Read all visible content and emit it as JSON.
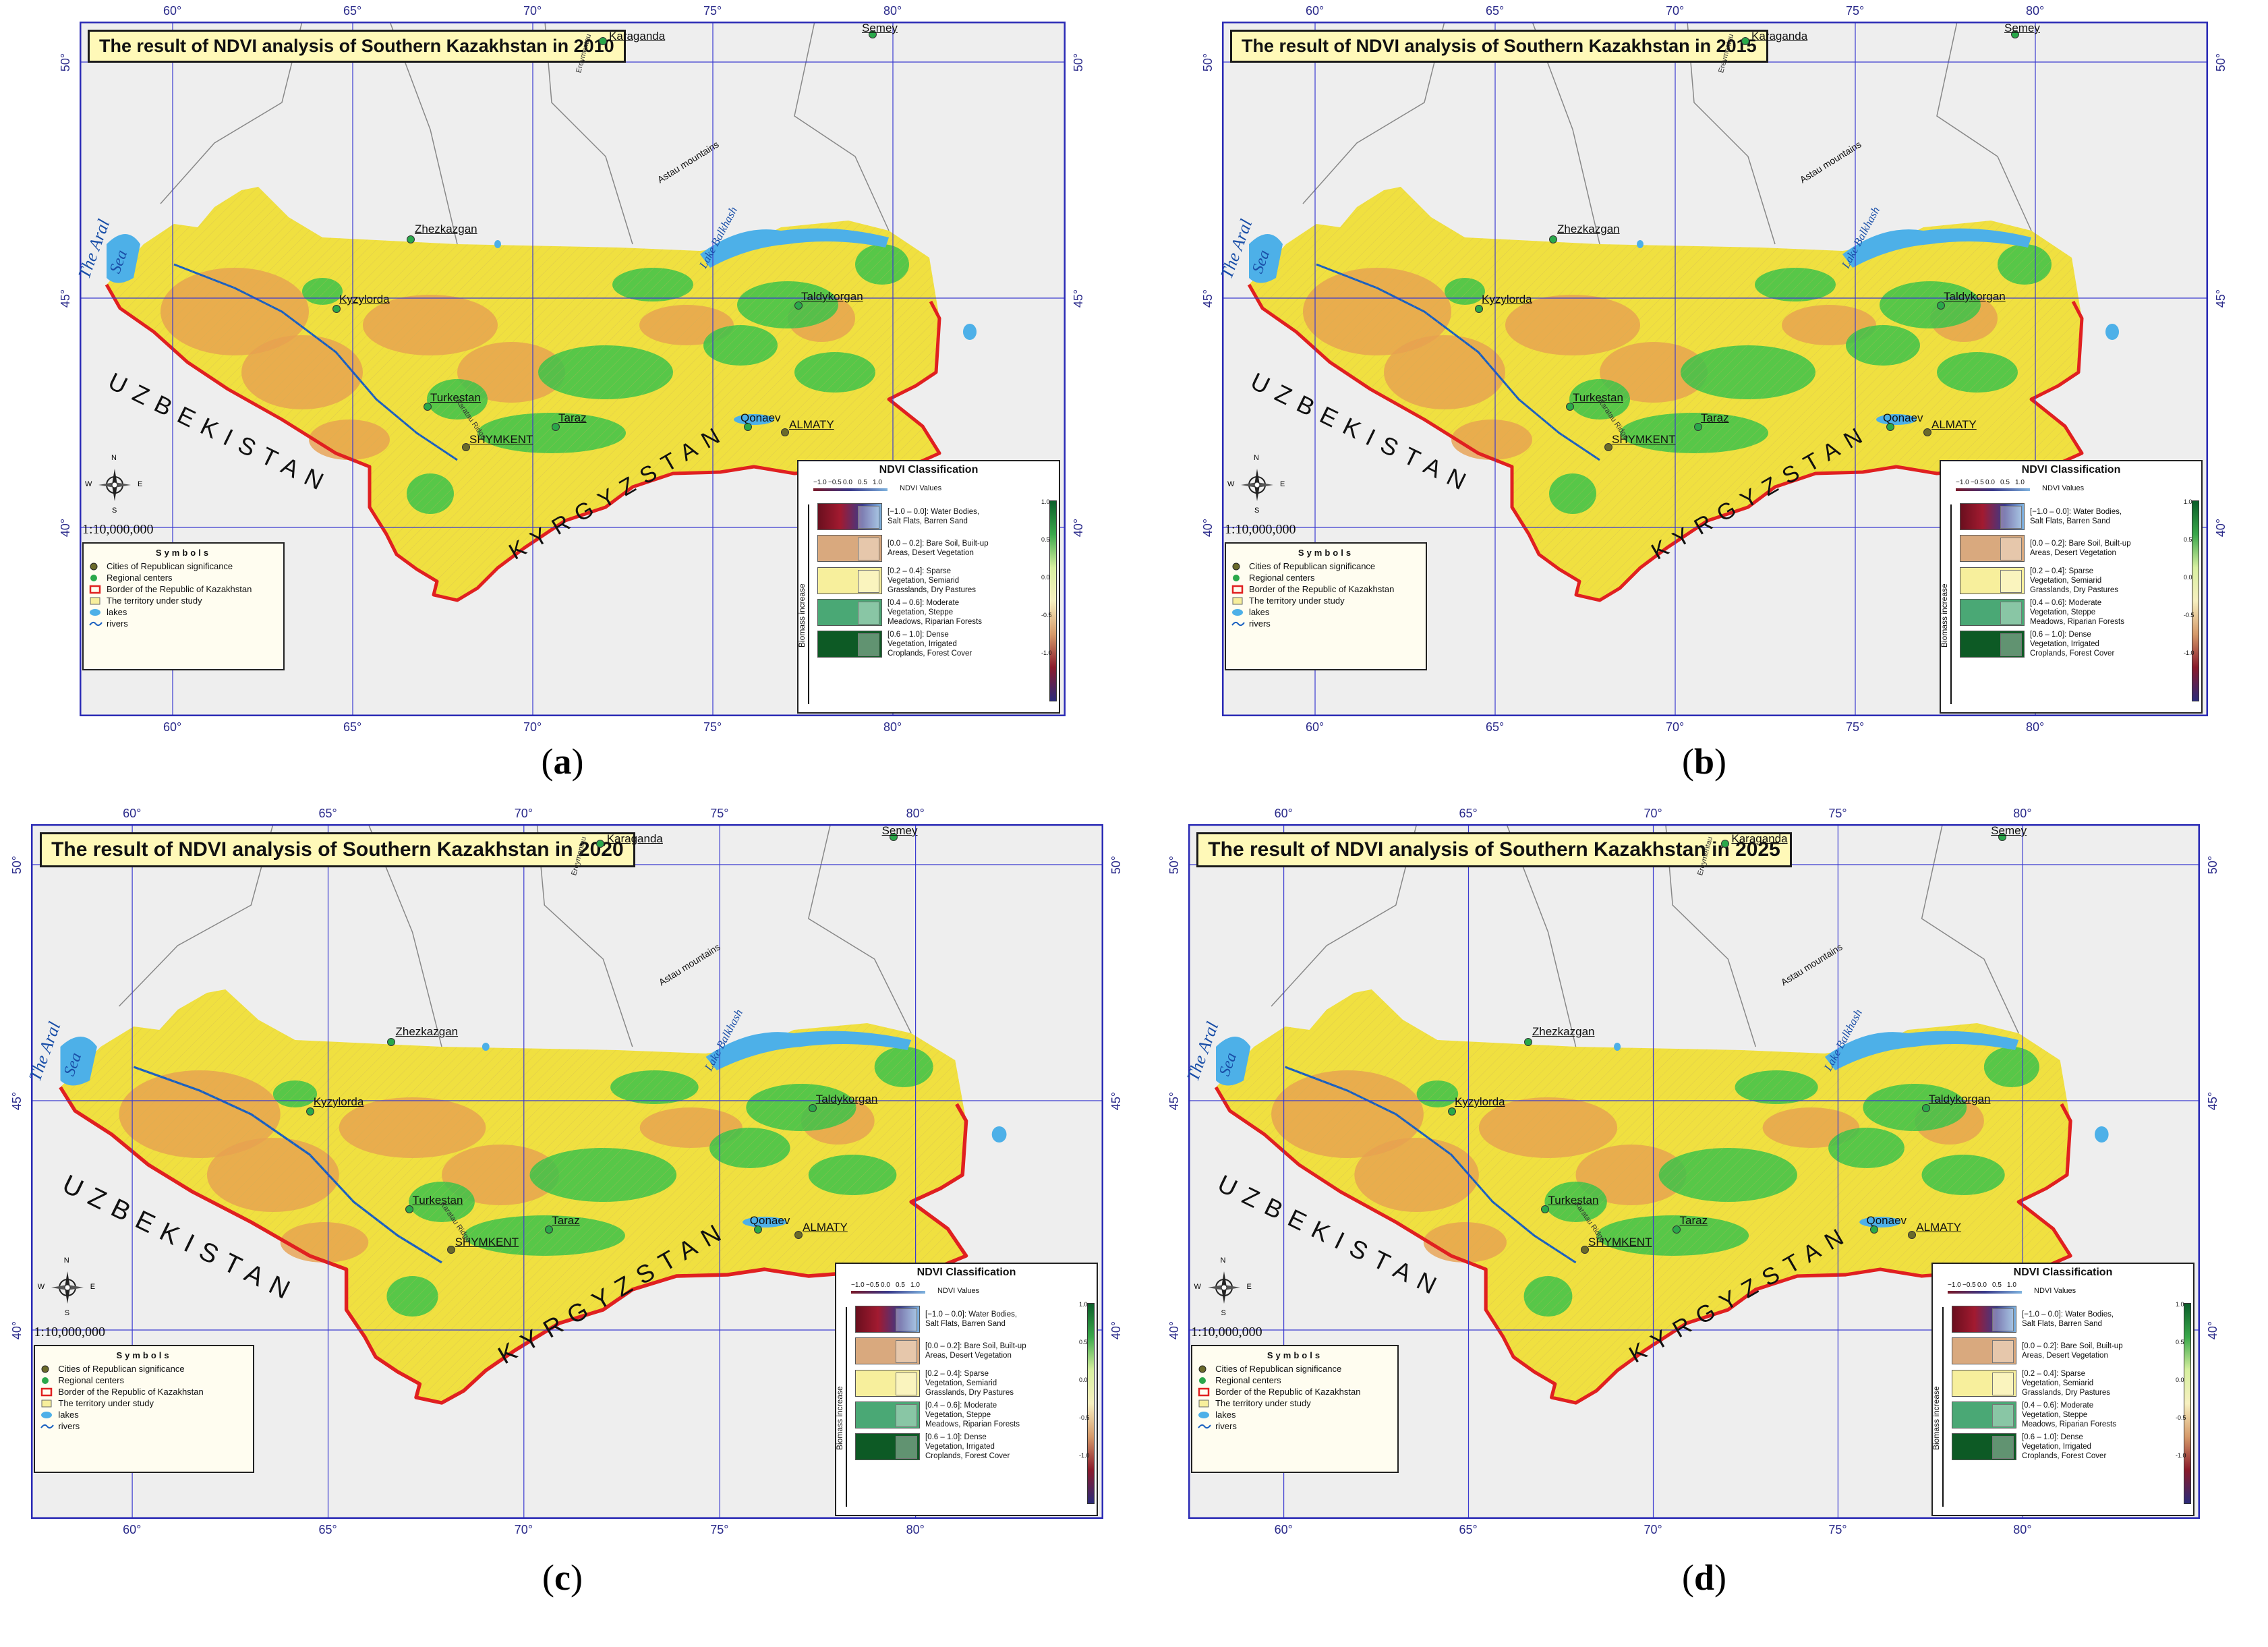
{
  "panels": [
    {
      "id": "a",
      "title": "The result of NDVI analysis of Southern Kazakhstan in 2010",
      "label_letter": "a"
    },
    {
      "id": "b",
      "title": "The result of NDVI analysis of Southern Kazakhstan in 2015",
      "label_letter": "b"
    },
    {
      "id": "c",
      "title": "The result of NDVI analysis of Southern Kazakhstan in 2020",
      "label_letter": "c"
    },
    {
      "id": "d",
      "title": "The result of NDVI analysis of Southern Kazakhstan in 2025",
      "label_letter": "d"
    }
  ],
  "longitude_ticks": [
    "60°",
    "65°",
    "70°",
    "75°",
    "80°"
  ],
  "latitude_ticks": [
    "50°",
    "45°",
    "40°"
  ],
  "places": {
    "karaganda": "Karaganda",
    "semey": "Semey",
    "zhezkazgan": "Zhezkazgan",
    "kyzylorda": "Kyzylorda",
    "taldykorgan": "Taldykorgan",
    "turkestan": "Turkestan",
    "taraz": "Taraz",
    "shymkent": "SHYMKENT",
    "qonaev": "Qonaev",
    "almaty": "ALMATY",
    "astau": "Astau mountains",
    "aral_1": "The Aral",
    "aral_2": "Sea",
    "balkhash": "Lake Balkhash",
    "karatau": "Karatau Ridge",
    "river": "Syr Darya",
    "nura": "Ereymentau"
  },
  "countries": {
    "uzbekistan": "UZBEKISTAN",
    "kyrgyzstan": "KYRGYZSTAN"
  },
  "scale": "1:10,000,000",
  "compass": {
    "n": "N",
    "s": "S",
    "w": "W",
    "e": "E"
  },
  "symbols": {
    "header": "Symbols",
    "items": [
      "Cities of Republican significance",
      "Regional centers",
      "Border of the Republic of Kazakhstan",
      "The territory under study",
      "lakes",
      "rivers"
    ]
  },
  "ndvi_legend": {
    "title": "NDVI Classification",
    "values_label": "NDVI Values",
    "ramp_ticks": [
      "−1.0",
      "−0.5",
      "0.0",
      "0.5",
      "1.0"
    ],
    "biomass": "Biomass increase",
    "classes": [
      {
        "text": "[−1.0 – 0.0]: Water Bodies, Salt Flats, Barren Sand",
        "color": "#7a1a2a"
      },
      {
        "text": "[0.0 – 0.2]: Bare Soil, Built-up Areas, Desert Vegetation",
        "color": "#d9a97e"
      },
      {
        "text": "[0.2 – 0.4]: Sparse Vegetation, Semiarid Grasslands, Dry Pastures",
        "color": "#f7ef9c"
      },
      {
        "text": "[0.4 – 0.6]: Moderate Vegetation, Steppe Meadows, Riparian Forests",
        "color": "#4aa875"
      },
      {
        "text": "[0.6 – 1.0]: Dense Vegetation, Irrigated Croplands, Forest Cover",
        "color": "#0d5a25"
      }
    ],
    "colorbar_ticks": [
      "1.0",
      "0.5",
      "0.0",
      "-0.5",
      "-1.0"
    ]
  },
  "colors": {
    "border": "#e02020",
    "grid": "#3b3bd0",
    "lake": "#4db0e8",
    "background_land": "#eeeeee",
    "desert": "#e7a050",
    "sparse": "#f0e040",
    "vegetation": "#3cc24a"
  }
}
